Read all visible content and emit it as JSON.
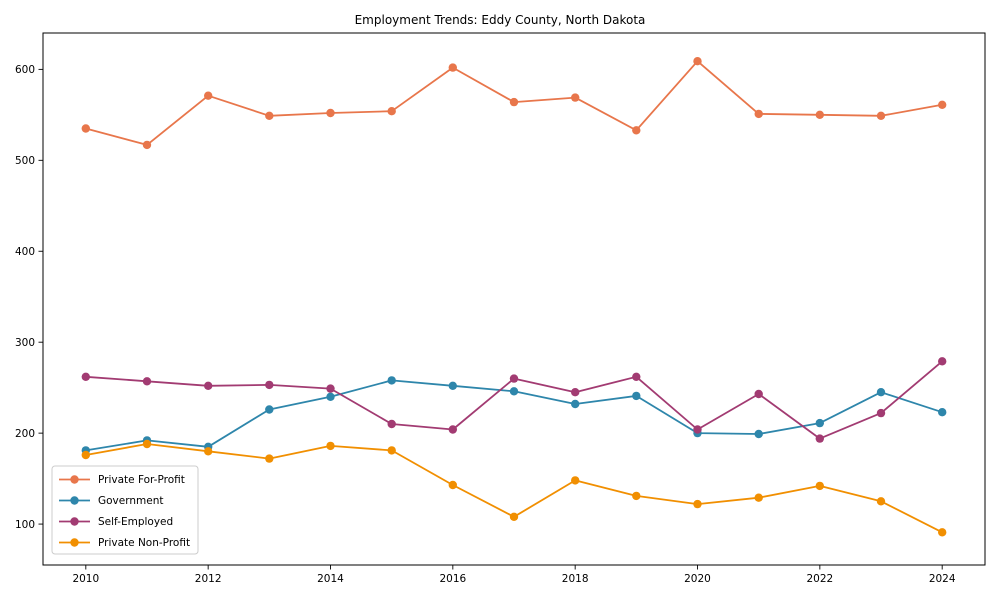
{
  "chart_data": {
    "type": "line",
    "title": "Employment Trends: Eddy County, North Dakota",
    "x": [
      2010,
      2011,
      2012,
      2013,
      2014,
      2015,
      2016,
      2017,
      2018,
      2019,
      2020,
      2021,
      2022,
      2023,
      2024
    ],
    "series": [
      {
        "name": "Private For-Profit",
        "color": "#E8764B",
        "values": [
          535,
          517,
          571,
          549,
          552,
          554,
          602,
          564,
          569,
          533,
          609,
          551,
          550,
          549,
          561
        ]
      },
      {
        "name": "Government",
        "color": "#2E86AB",
        "values": [
          181,
          192,
          185,
          226,
          240,
          258,
          252,
          246,
          232,
          241,
          200,
          199,
          211,
          245,
          223
        ]
      },
      {
        "name": "Self-Employed",
        "color": "#A23B72",
        "values": [
          262,
          257,
          252,
          253,
          249,
          210,
          204,
          260,
          245,
          262,
          204,
          243,
          194,
          222,
          279
        ]
      },
      {
        "name": "Private Non-Profit",
        "color": "#F18F01",
        "values": [
          176,
          188,
          180,
          172,
          186,
          181,
          143,
          108,
          148,
          131,
          122,
          129,
          142,
          125,
          91
        ]
      }
    ],
    "xlabel": "",
    "ylabel": "",
    "x_ticks": [
      2010,
      2012,
      2014,
      2016,
      2018,
      2020,
      2022,
      2024
    ],
    "y_ticks": [
      100,
      200,
      300,
      400,
      500,
      600
    ],
    "xlim": [
      2009.3,
      2024.7
    ],
    "ylim": [
      55,
      640
    ],
    "grid": false,
    "legend_position": "lower-left",
    "axis_color": "#000000",
    "legend_border_color": "#cccccc",
    "background_color": "#ffffff"
  }
}
